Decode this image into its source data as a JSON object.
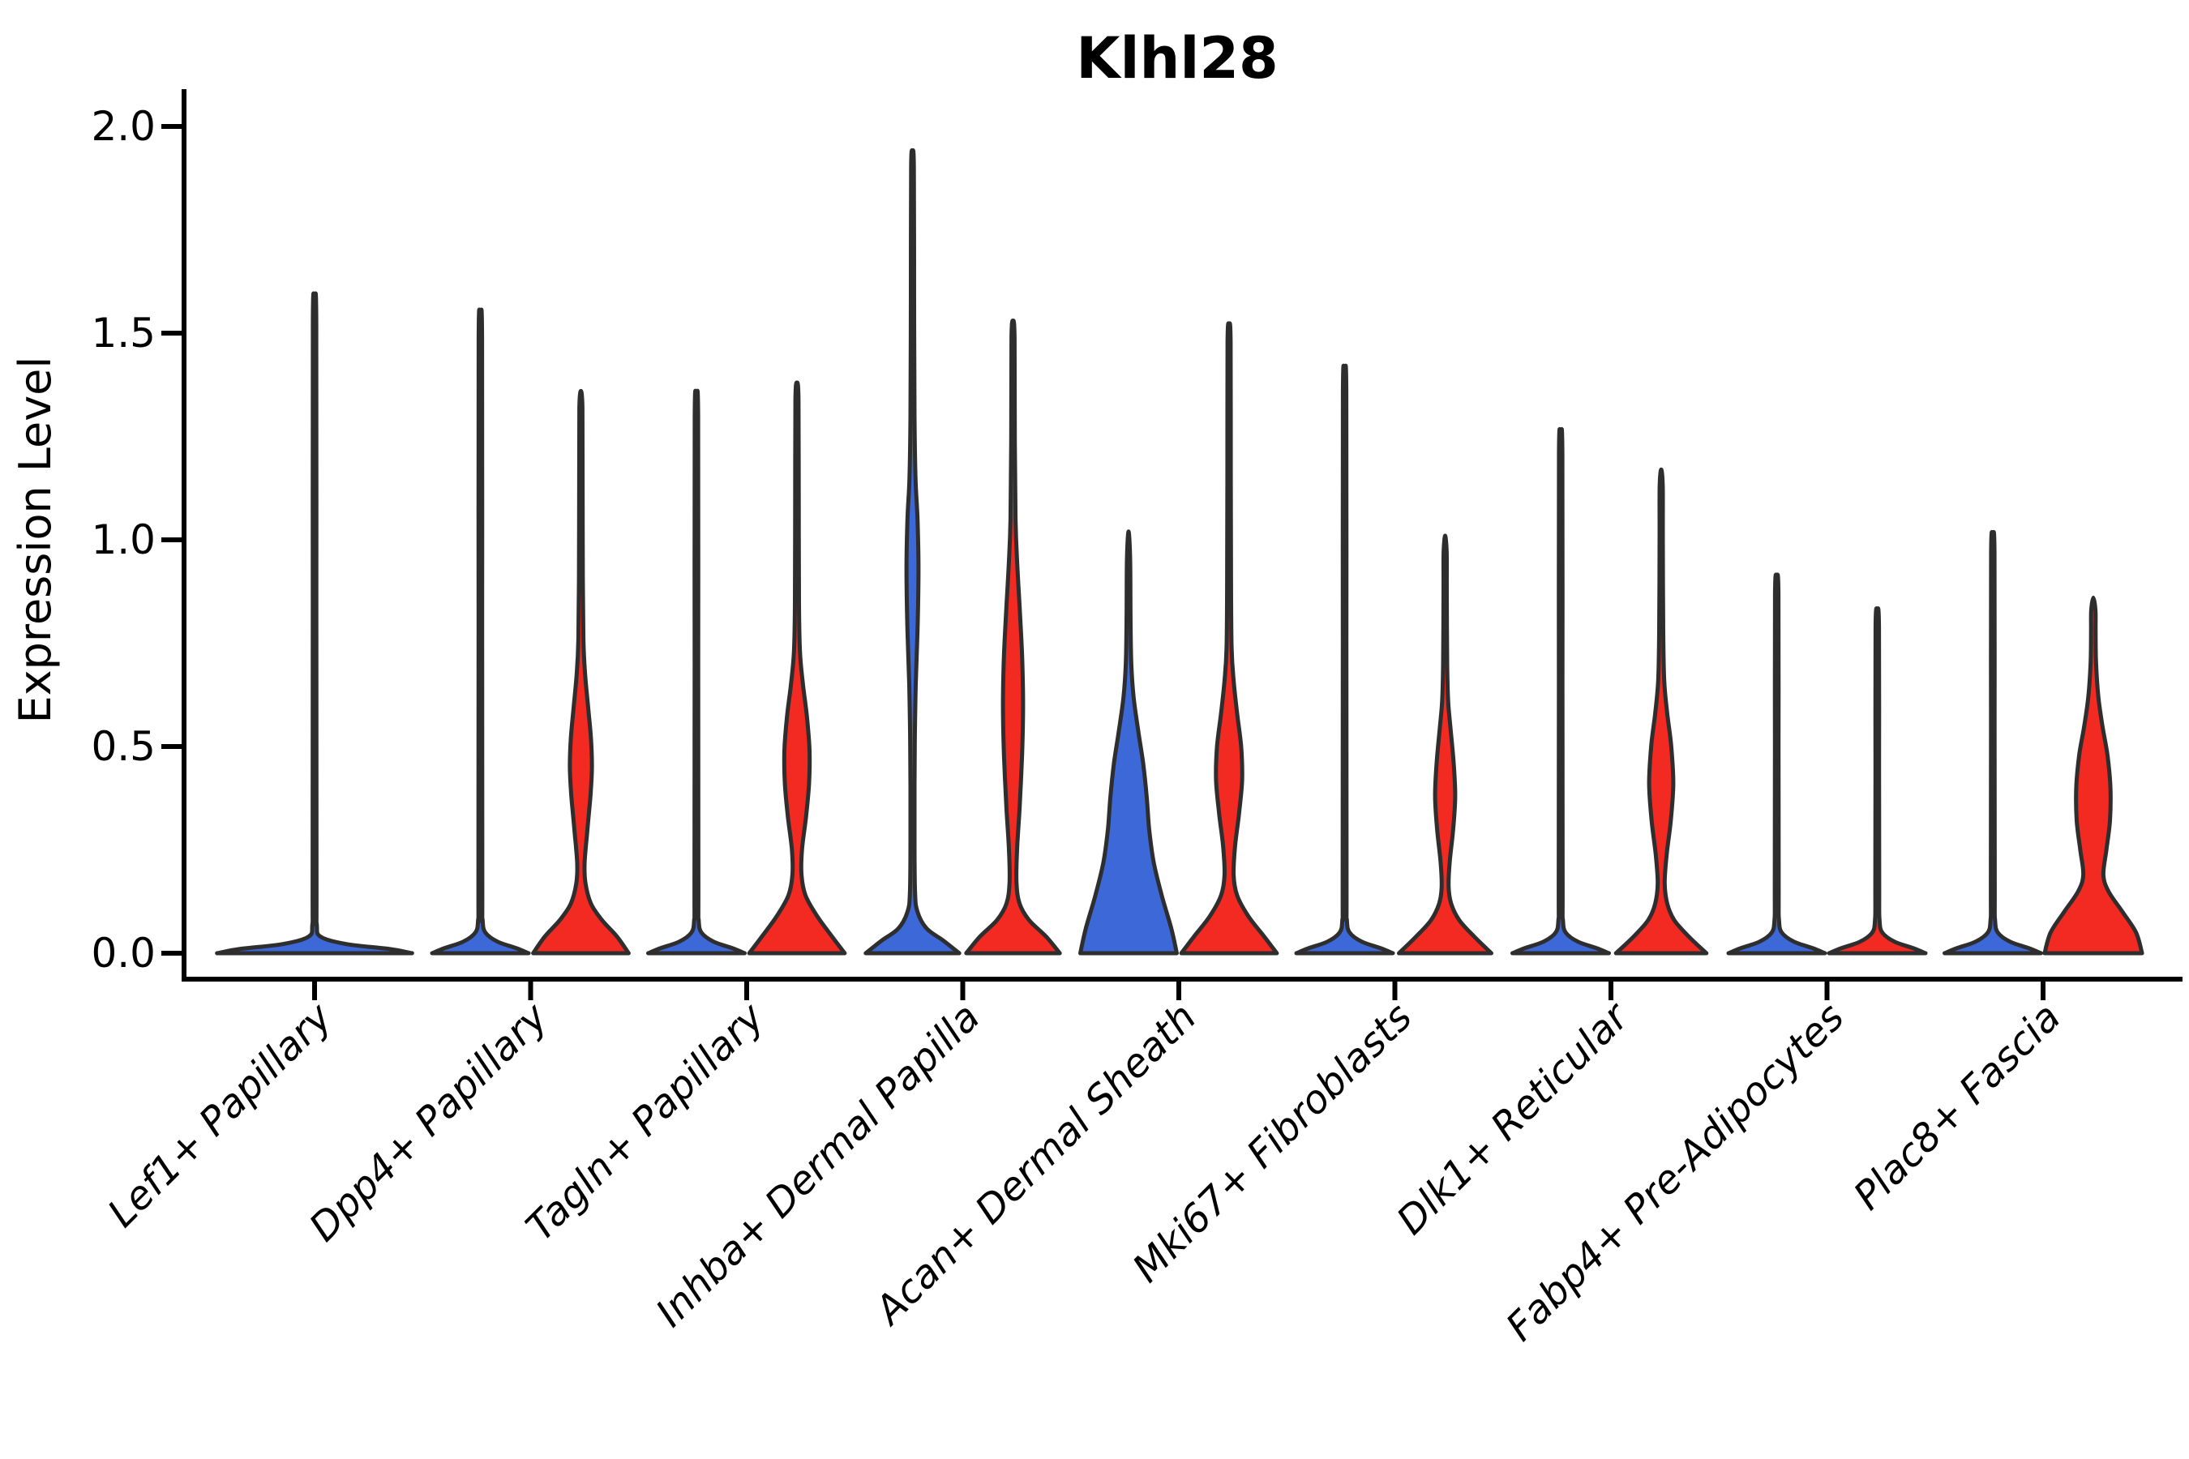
{
  "title": "Klhl28",
  "axes": {
    "ylabel": "Expression Level",
    "yticks": [
      "2.0",
      "1.5",
      "1.0",
      "0.5",
      "0.0"
    ],
    "ytick_values": [
      2.0,
      1.5,
      1.0,
      0.5,
      0.0
    ],
    "categories": [
      "Lef1+ Papillary",
      "Dpp4+ Papillary",
      "Tagln+ Papillary",
      "Inhba+ Dermal Papilla",
      "Acan+ Dermal Sheath",
      "Mki67+ Fibroblasts",
      "Dlk1+ Reticular",
      "Fabp4+ Pre-Adipocytes",
      "Plac8+ Fascia"
    ]
  },
  "colors": {
    "blue": "#3D68D8",
    "red": "#F32A22",
    "outline": "#2E2E2E",
    "axis": "#000000"
  },
  "chart_data": {
    "type": "violin",
    "title": "Klhl28",
    "xlabel": "",
    "ylabel": "Expression Level",
    "ylim": [
      0,
      2
    ],
    "yticks": [
      0.0,
      0.5,
      1.0,
      1.5,
      2.0
    ],
    "grid": false,
    "legend": "none",
    "categories": [
      "Lef1+ Papillary",
      "Dpp4+ Papillary",
      "Tagln+ Papillary",
      "Inhba+ Dermal Papilla",
      "Acan+ Dermal Sheath",
      "Mki67+ Fibroblasts",
      "Dlk1+ Reticular",
      "Fabp4+ Pre-Adipocytes",
      "Plac8+ Fascia"
    ],
    "series": [
      {
        "name": "group-blue",
        "color": "#3D68D8",
        "max_expression": [
          1.57,
          1.53,
          1.34,
          1.94,
          1.02,
          1.4,
          1.25,
          0.91,
          1.01
        ]
      },
      {
        "name": "group-red",
        "color": "#F32A22",
        "max_expression": [
          null,
          1.36,
          1.38,
          1.53,
          1.52,
          1.01,
          1.17,
          0.83,
          0.86
        ]
      }
    ],
    "violins": [
      {
        "category": 0,
        "group": "blue",
        "position": "center",
        "full": true,
        "max": 1.57,
        "profile": [
          [
            0,
            0.97
          ],
          [
            0.01,
            0.75
          ],
          [
            0.022,
            0.32
          ],
          [
            0.04,
            0.06
          ],
          [
            0.07,
            0.022
          ],
          [
            0.15,
            0.019
          ],
          [
            0.85,
            0.018
          ],
          [
            1.53,
            0.017
          ],
          [
            1.57,
            0
          ]
        ]
      },
      {
        "category": 1,
        "group": "blue",
        "position": "left",
        "full": false,
        "max": 1.53,
        "profile": [
          [
            0,
            0.96
          ],
          [
            0.012,
            0.72
          ],
          [
            0.028,
            0.34
          ],
          [
            0.05,
            0.1
          ],
          [
            0.08,
            0.045
          ],
          [
            0.15,
            0.038
          ],
          [
            0.8,
            0.036
          ],
          [
            1.49,
            0.034
          ],
          [
            1.53,
            0
          ]
        ]
      },
      {
        "category": 1,
        "group": "red",
        "position": "right",
        "full": false,
        "max": 1.36,
        "profile": [
          [
            0,
            0.95
          ],
          [
            0.04,
            0.72
          ],
          [
            0.08,
            0.42
          ],
          [
            0.12,
            0.2
          ],
          [
            0.17,
            0.09
          ],
          [
            0.22,
            0.075
          ],
          [
            0.3,
            0.13
          ],
          [
            0.38,
            0.19
          ],
          [
            0.45,
            0.22
          ],
          [
            0.52,
            0.2
          ],
          [
            0.6,
            0.14
          ],
          [
            0.68,
            0.08
          ],
          [
            0.76,
            0.05
          ],
          [
            0.9,
            0.038
          ],
          [
            1.15,
            0.034
          ],
          [
            1.32,
            0.03
          ],
          [
            1.36,
            0
          ]
        ]
      },
      {
        "category": 2,
        "group": "blue",
        "position": "left",
        "full": false,
        "max": 1.34,
        "profile": [
          [
            0,
            0.96
          ],
          [
            0.012,
            0.72
          ],
          [
            0.028,
            0.34
          ],
          [
            0.05,
            0.1
          ],
          [
            0.08,
            0.045
          ],
          [
            0.15,
            0.038
          ],
          [
            0.7,
            0.036
          ],
          [
            1.3,
            0.034
          ],
          [
            1.34,
            0
          ]
        ]
      },
      {
        "category": 2,
        "group": "red",
        "position": "right",
        "full": false,
        "max": 1.38,
        "profile": [
          [
            0,
            0.95
          ],
          [
            0.04,
            0.7
          ],
          [
            0.09,
            0.4
          ],
          [
            0.14,
            0.17
          ],
          [
            0.19,
            0.09
          ],
          [
            0.25,
            0.1
          ],
          [
            0.33,
            0.18
          ],
          [
            0.41,
            0.24
          ],
          [
            0.49,
            0.25
          ],
          [
            0.57,
            0.2
          ],
          [
            0.65,
            0.12
          ],
          [
            0.73,
            0.06
          ],
          [
            0.85,
            0.04
          ],
          [
            1.1,
            0.035
          ],
          [
            1.34,
            0.03
          ],
          [
            1.38,
            0
          ]
        ]
      },
      {
        "category": 3,
        "group": "blue",
        "position": "left",
        "full": false,
        "max": 1.94,
        "profile": [
          [
            0,
            0.93
          ],
          [
            0.03,
            0.62
          ],
          [
            0.06,
            0.28
          ],
          [
            0.1,
            0.1
          ],
          [
            0.15,
            0.05
          ],
          [
            0.3,
            0.04
          ],
          [
            0.5,
            0.045
          ],
          [
            0.65,
            0.065
          ],
          [
            0.78,
            0.1
          ],
          [
            0.93,
            0.12
          ],
          [
            1.05,
            0.1
          ],
          [
            1.15,
            0.06
          ],
          [
            1.3,
            0.04
          ],
          [
            1.6,
            0.032
          ],
          [
            1.9,
            0.028
          ],
          [
            1.94,
            0
          ]
        ]
      },
      {
        "category": 3,
        "group": "red",
        "position": "right",
        "full": false,
        "max": 1.53,
        "profile": [
          [
            0,
            0.93
          ],
          [
            0.04,
            0.66
          ],
          [
            0.08,
            0.32
          ],
          [
            0.12,
            0.13
          ],
          [
            0.17,
            0.07
          ],
          [
            0.25,
            0.08
          ],
          [
            0.35,
            0.13
          ],
          [
            0.48,
            0.18
          ],
          [
            0.6,
            0.2
          ],
          [
            0.72,
            0.18
          ],
          [
            0.84,
            0.13
          ],
          [
            0.95,
            0.08
          ],
          [
            1.05,
            0.05
          ],
          [
            1.25,
            0.036
          ],
          [
            1.49,
            0.03
          ],
          [
            1.53,
            0
          ]
        ]
      },
      {
        "category": 4,
        "group": "blue",
        "position": "left",
        "full": false,
        "max": 1.02,
        "profile": [
          [
            0,
            0.96
          ],
          [
            0.06,
            0.85
          ],
          [
            0.14,
            0.66
          ],
          [
            0.22,
            0.5
          ],
          [
            0.3,
            0.41
          ],
          [
            0.38,
            0.36
          ],
          [
            0.46,
            0.29
          ],
          [
            0.54,
            0.19
          ],
          [
            0.62,
            0.1
          ],
          [
            0.7,
            0.055
          ],
          [
            0.8,
            0.04
          ],
          [
            0.95,
            0.032
          ],
          [
            1.02,
            0
          ]
        ]
      },
      {
        "category": 4,
        "group": "red",
        "position": "right",
        "full": false,
        "max": 1.52,
        "profile": [
          [
            0,
            0.95
          ],
          [
            0.04,
            0.7
          ],
          [
            0.09,
            0.38
          ],
          [
            0.14,
            0.16
          ],
          [
            0.19,
            0.09
          ],
          [
            0.26,
            0.12
          ],
          [
            0.34,
            0.2
          ],
          [
            0.42,
            0.26
          ],
          [
            0.5,
            0.24
          ],
          [
            0.58,
            0.16
          ],
          [
            0.66,
            0.09
          ],
          [
            0.74,
            0.05
          ],
          [
            0.9,
            0.038
          ],
          [
            1.15,
            0.034
          ],
          [
            1.48,
            0.03
          ],
          [
            1.52,
            0
          ]
        ]
      },
      {
        "category": 5,
        "group": "blue",
        "position": "left",
        "full": false,
        "max": 1.4,
        "profile": [
          [
            0,
            0.96
          ],
          [
            0.012,
            0.72
          ],
          [
            0.028,
            0.34
          ],
          [
            0.05,
            0.1
          ],
          [
            0.08,
            0.045
          ],
          [
            0.15,
            0.038
          ],
          [
            0.75,
            0.036
          ],
          [
            1.36,
            0.034
          ],
          [
            1.4,
            0
          ]
        ]
      },
      {
        "category": 5,
        "group": "red",
        "position": "right",
        "full": false,
        "max": 1.01,
        "profile": [
          [
            0,
            0.92
          ],
          [
            0.04,
            0.58
          ],
          [
            0.08,
            0.28
          ],
          [
            0.12,
            0.12
          ],
          [
            0.16,
            0.07
          ],
          [
            0.22,
            0.09
          ],
          [
            0.3,
            0.16
          ],
          [
            0.38,
            0.2
          ],
          [
            0.46,
            0.17
          ],
          [
            0.54,
            0.11
          ],
          [
            0.61,
            0.06
          ],
          [
            0.7,
            0.04
          ],
          [
            0.88,
            0.033
          ],
          [
            0.97,
            0.03
          ],
          [
            1.01,
            0
          ]
        ]
      },
      {
        "category": 6,
        "group": "blue",
        "position": "left",
        "full": false,
        "max": 1.25,
        "profile": [
          [
            0,
            0.96
          ],
          [
            0.012,
            0.72
          ],
          [
            0.028,
            0.34
          ],
          [
            0.05,
            0.1
          ],
          [
            0.08,
            0.045
          ],
          [
            0.15,
            0.038
          ],
          [
            0.65,
            0.036
          ],
          [
            1.21,
            0.034
          ],
          [
            1.25,
            0
          ]
        ]
      },
      {
        "category": 6,
        "group": "red",
        "position": "right",
        "full": false,
        "max": 1.17,
        "profile": [
          [
            0,
            0.9
          ],
          [
            0.04,
            0.55
          ],
          [
            0.08,
            0.26
          ],
          [
            0.12,
            0.12
          ],
          [
            0.17,
            0.07
          ],
          [
            0.24,
            0.11
          ],
          [
            0.32,
            0.19
          ],
          [
            0.41,
            0.24
          ],
          [
            0.5,
            0.2
          ],
          [
            0.58,
            0.12
          ],
          [
            0.66,
            0.06
          ],
          [
            0.78,
            0.04
          ],
          [
            1.0,
            0.033
          ],
          [
            1.13,
            0.03
          ],
          [
            1.17,
            0
          ]
        ]
      },
      {
        "category": 7,
        "group": "blue",
        "position": "left",
        "full": false,
        "max": 0.91,
        "profile": [
          [
            0,
            0.96
          ],
          [
            0.012,
            0.72
          ],
          [
            0.028,
            0.34
          ],
          [
            0.05,
            0.1
          ],
          [
            0.08,
            0.045
          ],
          [
            0.15,
            0.038
          ],
          [
            0.5,
            0.036
          ],
          [
            0.87,
            0.034
          ],
          [
            0.91,
            0
          ]
        ]
      },
      {
        "category": 7,
        "group": "red",
        "position": "right",
        "full": false,
        "max": 0.83,
        "profile": [
          [
            0,
            0.96
          ],
          [
            0.012,
            0.72
          ],
          [
            0.028,
            0.34
          ],
          [
            0.05,
            0.1
          ],
          [
            0.08,
            0.045
          ],
          [
            0.15,
            0.038
          ],
          [
            0.45,
            0.036
          ],
          [
            0.79,
            0.034
          ],
          [
            0.83,
            0
          ]
        ]
      },
      {
        "category": 8,
        "group": "blue",
        "position": "left",
        "full": false,
        "max": 1.01,
        "profile": [
          [
            0,
            0.96
          ],
          [
            0.012,
            0.72
          ],
          [
            0.028,
            0.34
          ],
          [
            0.05,
            0.1
          ],
          [
            0.08,
            0.045
          ],
          [
            0.15,
            0.038
          ],
          [
            0.55,
            0.036
          ],
          [
            0.97,
            0.034
          ],
          [
            1.01,
            0
          ]
        ]
      },
      {
        "category": 8,
        "group": "red",
        "position": "right",
        "full": false,
        "max": 0.86,
        "profile": [
          [
            0,
            0.97
          ],
          [
            0.05,
            0.85
          ],
          [
            0.1,
            0.58
          ],
          [
            0.15,
            0.3
          ],
          [
            0.19,
            0.2
          ],
          [
            0.25,
            0.26
          ],
          [
            0.32,
            0.33
          ],
          [
            0.4,
            0.34
          ],
          [
            0.48,
            0.28
          ],
          [
            0.55,
            0.18
          ],
          [
            0.62,
            0.1
          ],
          [
            0.7,
            0.055
          ],
          [
            0.78,
            0.045
          ],
          [
            0.83,
            0.042
          ],
          [
            0.86,
            0
          ]
        ]
      }
    ]
  }
}
